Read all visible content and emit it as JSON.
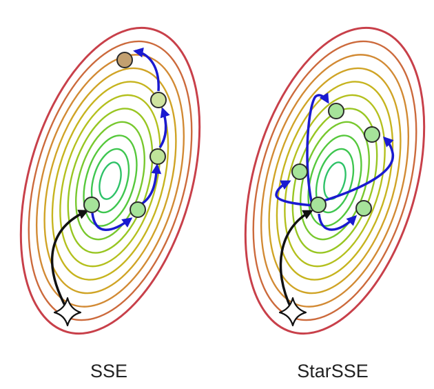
{
  "panels": [
    {
      "id": "sse",
      "caption": "SSE"
    },
    {
      "id": "starsse",
      "caption": "StarSSE"
    }
  ],
  "colors": {
    "contours": [
      "#c8404a",
      "#cc6a3c",
      "#d28a34",
      "#d0a426",
      "#c6b41e",
      "#b4c01e",
      "#98c622",
      "#78c82e",
      "#56c83c",
      "#3ec650",
      "#2ec268"
    ],
    "trajectory": "#1a1ad0",
    "initial_path": "#111111",
    "node_fill": "#a6e39a",
    "node_fill_mid": "#cfe3a0",
    "node_fill_end": "#c2a070",
    "node_stroke": "#2b2b2b",
    "start_marker": "#ffffff"
  },
  "icons": [
    "start-star-icon"
  ]
}
